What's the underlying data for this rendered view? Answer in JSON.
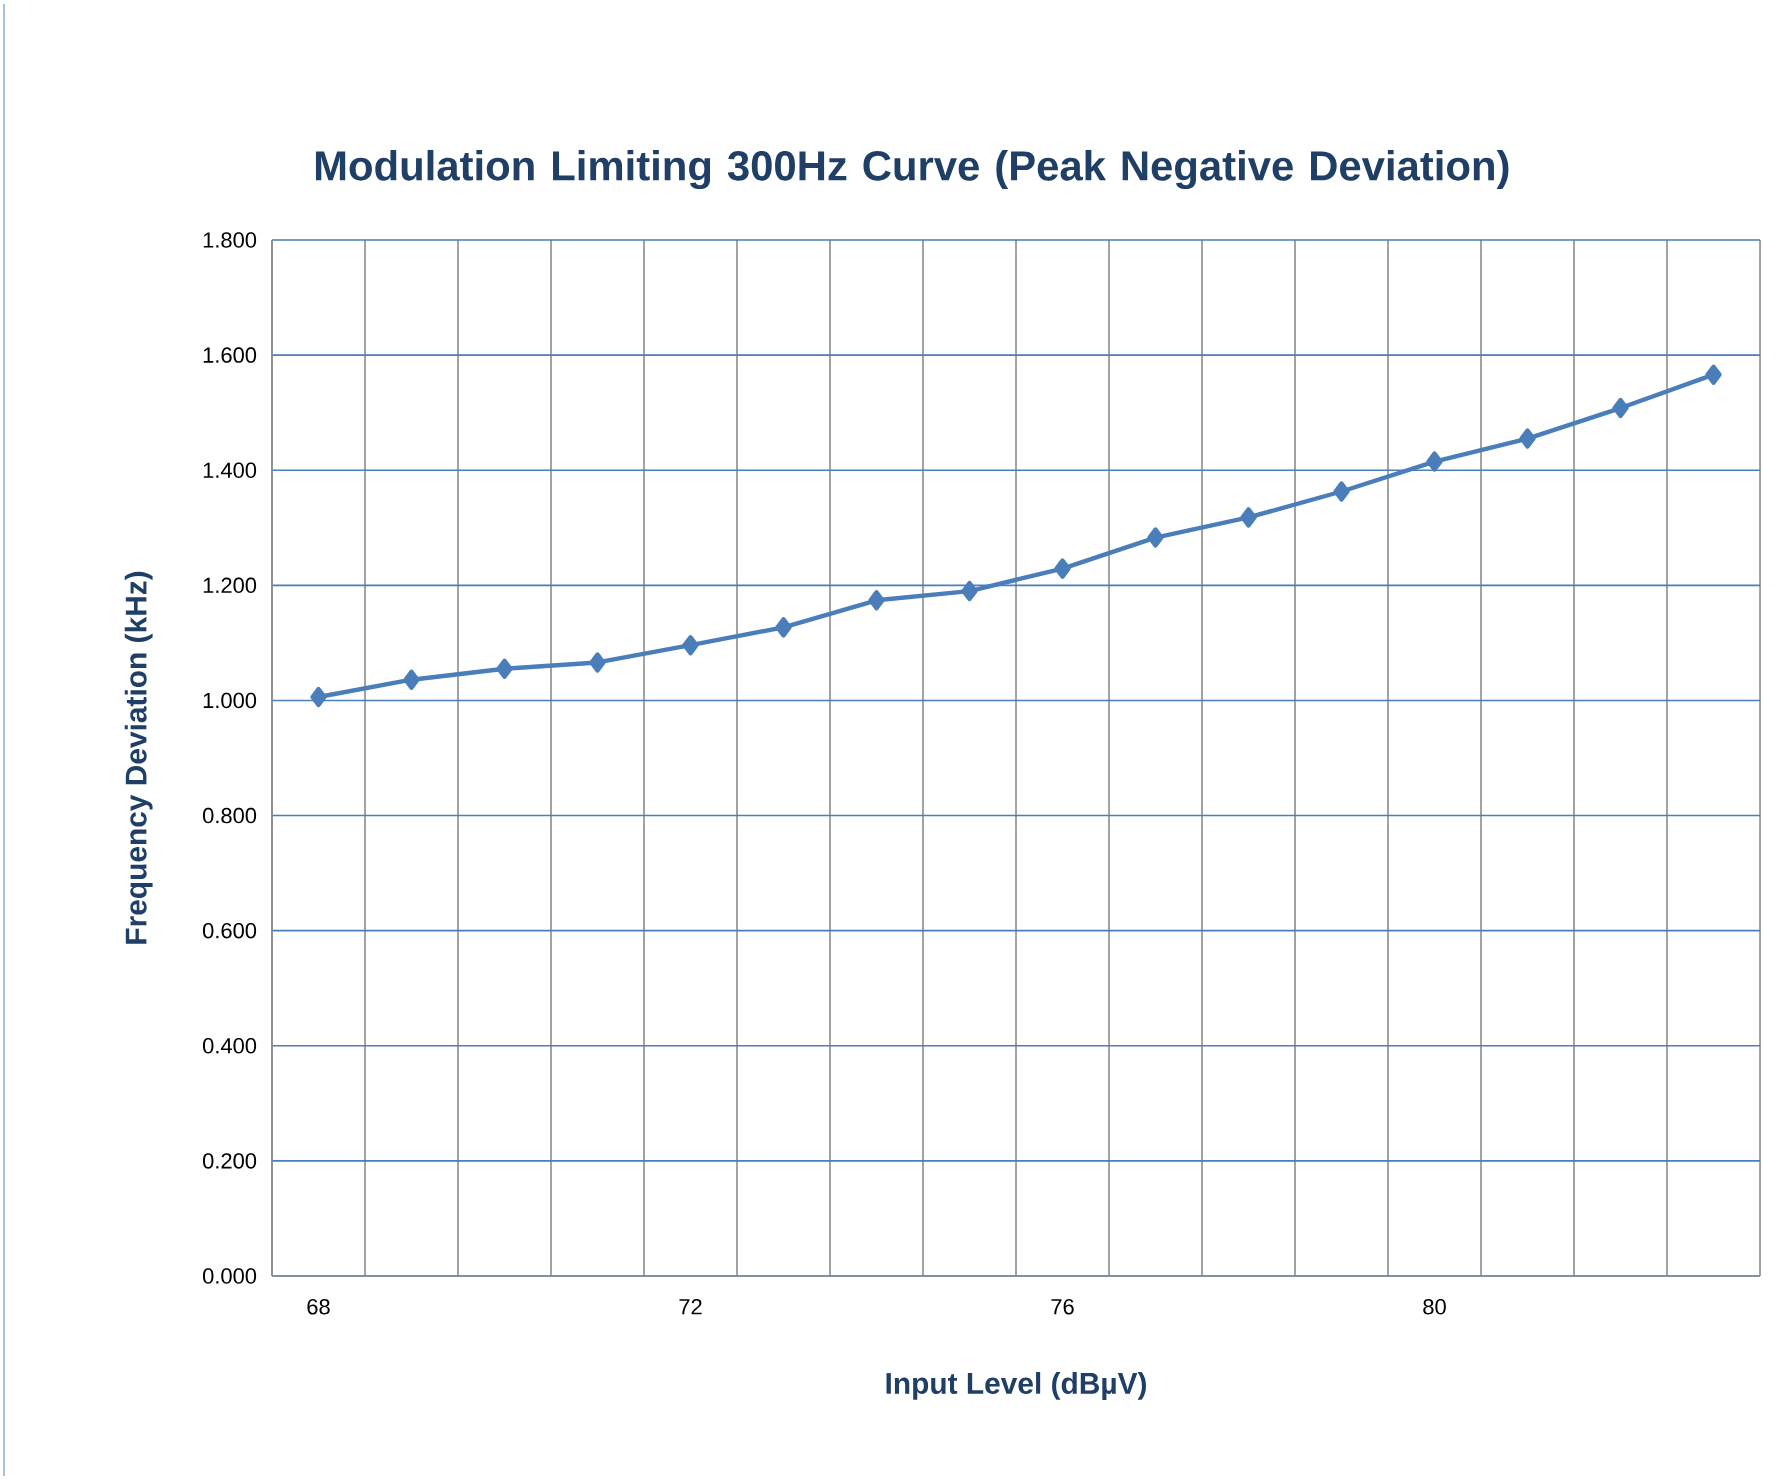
{
  "chart_data": {
    "type": "line",
    "title": "Modulation Limiting 300Hz Curve (Peak Negative Deviation)",
    "xlabel": "Input Level (dBµV)",
    "ylabel": "Frequency Deviation (kHz)",
    "categories": [
      "68",
      null,
      null,
      null,
      "72",
      null,
      null,
      null,
      "76",
      null,
      null,
      null,
      "80",
      null,
      null,
      null
    ],
    "series": [
      {
        "color": "#4a7ebb",
        "values": [
          1.006,
          1.036,
          1.055,
          1.066,
          1.096,
          1.127,
          1.174,
          1.19,
          1.229,
          1.283,
          1.318,
          1.363,
          1.415,
          1.455,
          1.508,
          1.566
        ]
      }
    ],
    "ylim": [
      0,
      1.8
    ],
    "yticks": [
      {
        "value": 0,
        "label": "0.000"
      },
      {
        "value": 0.2,
        "label": "0.200"
      },
      {
        "value": 0.4,
        "label": "0.400"
      },
      {
        "value": 0.6,
        "label": "0.600"
      },
      {
        "value": 0.8,
        "label": "0.800"
      },
      {
        "value": 1.0,
        "label": "1.000"
      },
      {
        "value": 1.2,
        "label": "1.200"
      },
      {
        "value": 1.4,
        "label": "1.400"
      },
      {
        "value": 1.6,
        "label": "1.600"
      },
      {
        "value": 1.8,
        "label": "1.800"
      }
    ],
    "grid": true,
    "marker": "diamond",
    "line_style": "solid"
  }
}
